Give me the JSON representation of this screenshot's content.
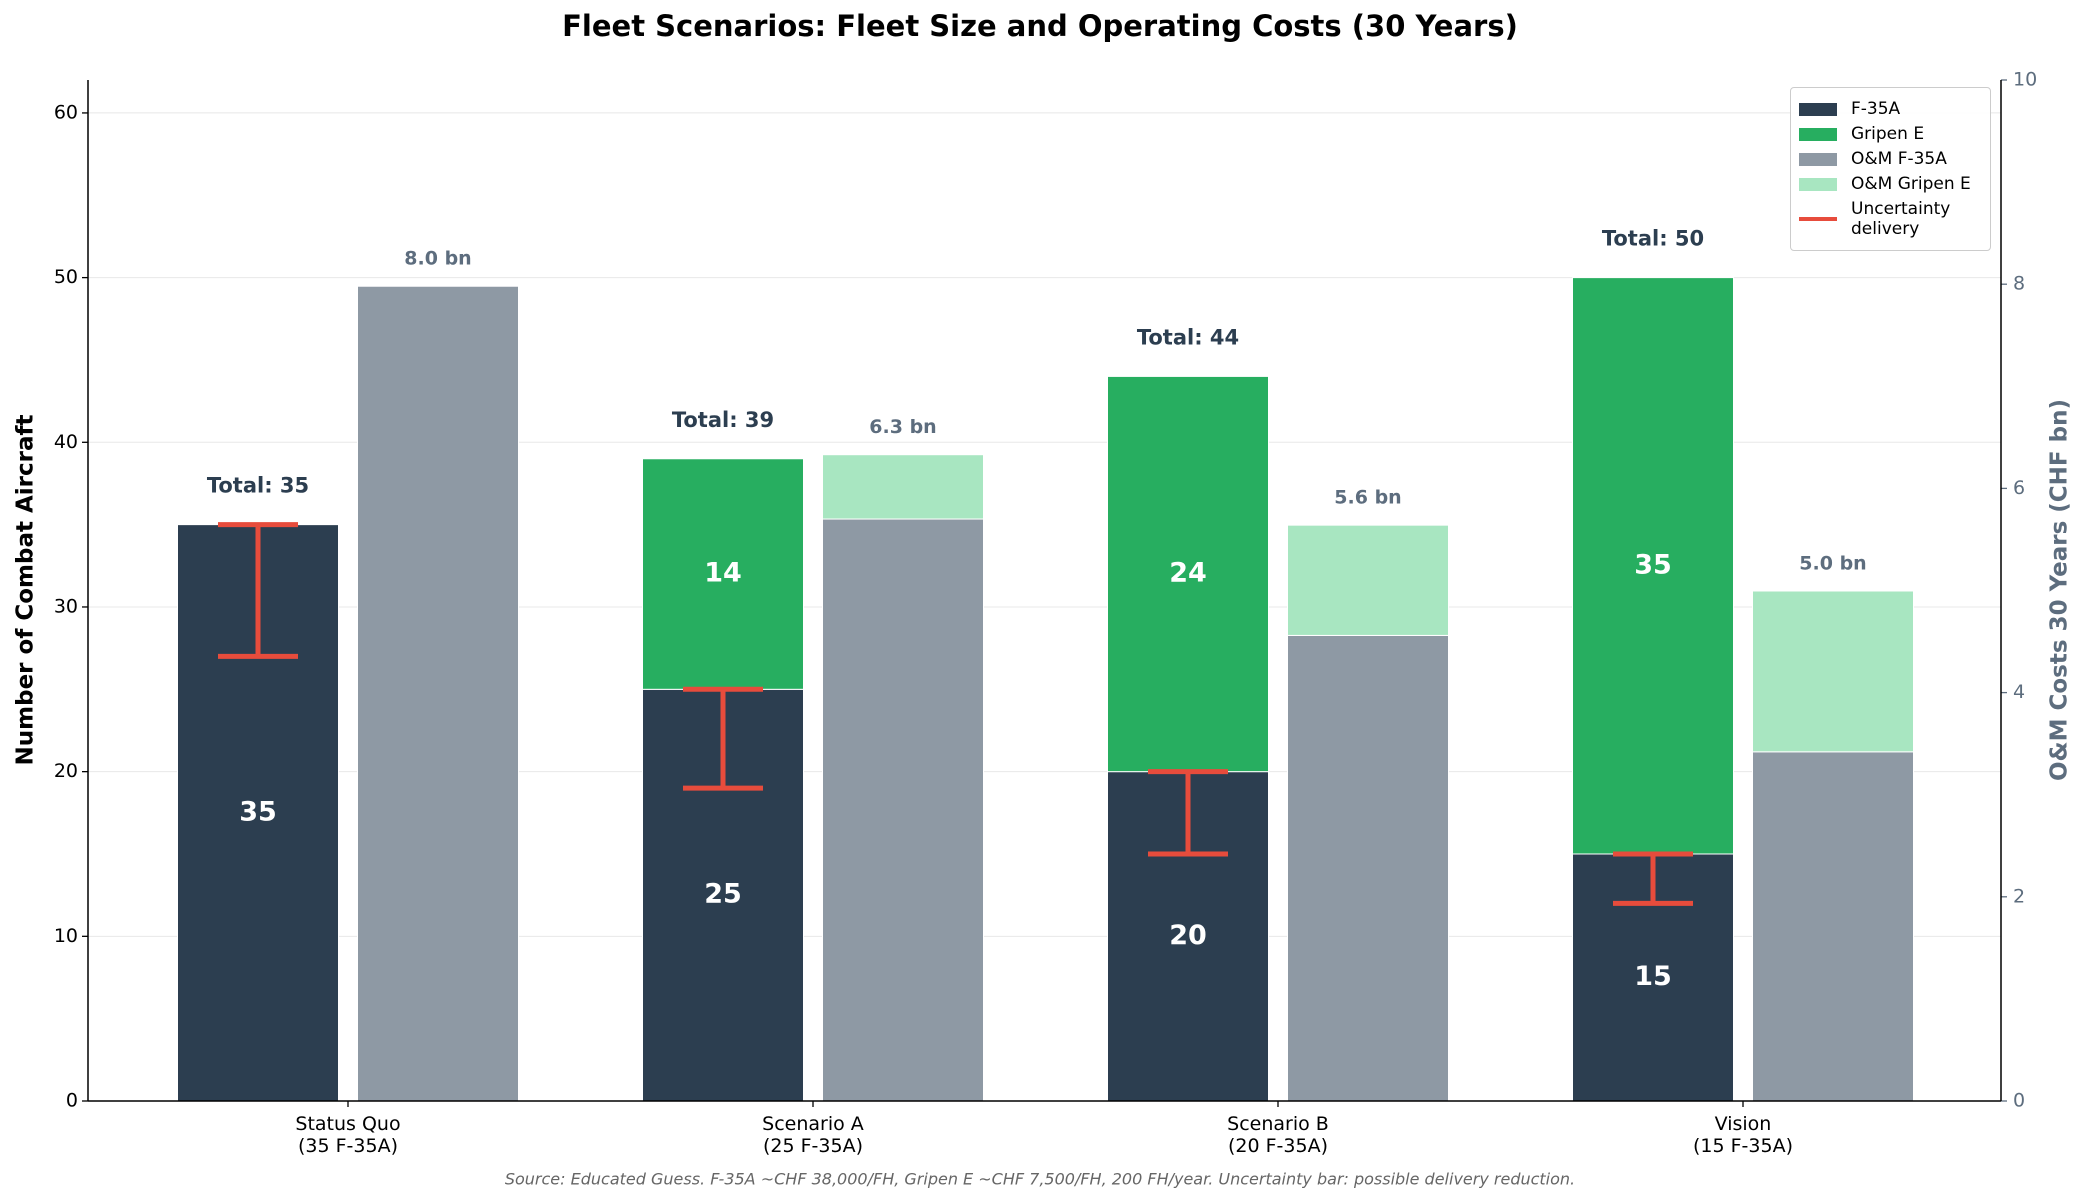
{
  "chart_data": {
    "type": "grouped-stacked-bar",
    "title": "Fleet Scenarios: Fleet Size and Operating Costs (30 Years)",
    "ylabel": "Number of Combat Aircraft",
    "y2label": "O&M Costs 30 Years (CHF bn)",
    "source": "Source: Educated Guess. F-35A ~CHF 38,000/FH, Gripen E ~CHF 7,500/FH, 200 FH/year. Uncertainty bar: possible delivery reduction.",
    "categories": [
      "Status Quo\n(35 F-35A)",
      "Scenario A\n(25 F-35A)",
      "Scenario B\n(20 F-35A)",
      "Vision\n(15 F-35A)"
    ],
    "series": [
      {
        "name": "F-35A",
        "color": "#2c3e50",
        "values": [
          35,
          25,
          20,
          15
        ]
      },
      {
        "name": "Gripen E",
        "color": "#27ae60",
        "values": [
          null,
          14,
          24,
          35
        ]
      },
      {
        "name": "O&M F-35A",
        "color": "#8e99a4",
        "axis": "y2",
        "values": [
          7.98,
          5.7,
          4.56,
          3.42
        ]
      },
      {
        "name": "O&M Gripen E",
        "color": "#a8e6c1",
        "axis": "y2",
        "values": [
          null,
          0.63,
          1.08,
          1.575
        ]
      }
    ],
    "totals": {
      "values": [
        35,
        39,
        44,
        50
      ],
      "value_labels": [
        "Total: 35",
        "Total: 39",
        "Total: 44",
        "Total: 50"
      ]
    },
    "om_totals": {
      "values": [
        7.98,
        6.33,
        5.64,
        4.995
      ],
      "value_labels": [
        "8.0 bn",
        "6.3 bn",
        "5.6 bn",
        "5.0 bn"
      ]
    },
    "uncertainty": {
      "name": "Uncertainty\ndelivery",
      "color": "#e74c3c",
      "low": [
        27,
        19,
        15,
        12
      ]
    },
    "ylim": [
      0,
      62
    ],
    "yticks": [
      0,
      10,
      20,
      30,
      40,
      50,
      60
    ],
    "y2lim": [
      0,
      10
    ],
    "y2ticks": [
      0,
      2,
      4,
      6,
      8,
      10
    ],
    "grid": true,
    "legend": "upper right"
  }
}
